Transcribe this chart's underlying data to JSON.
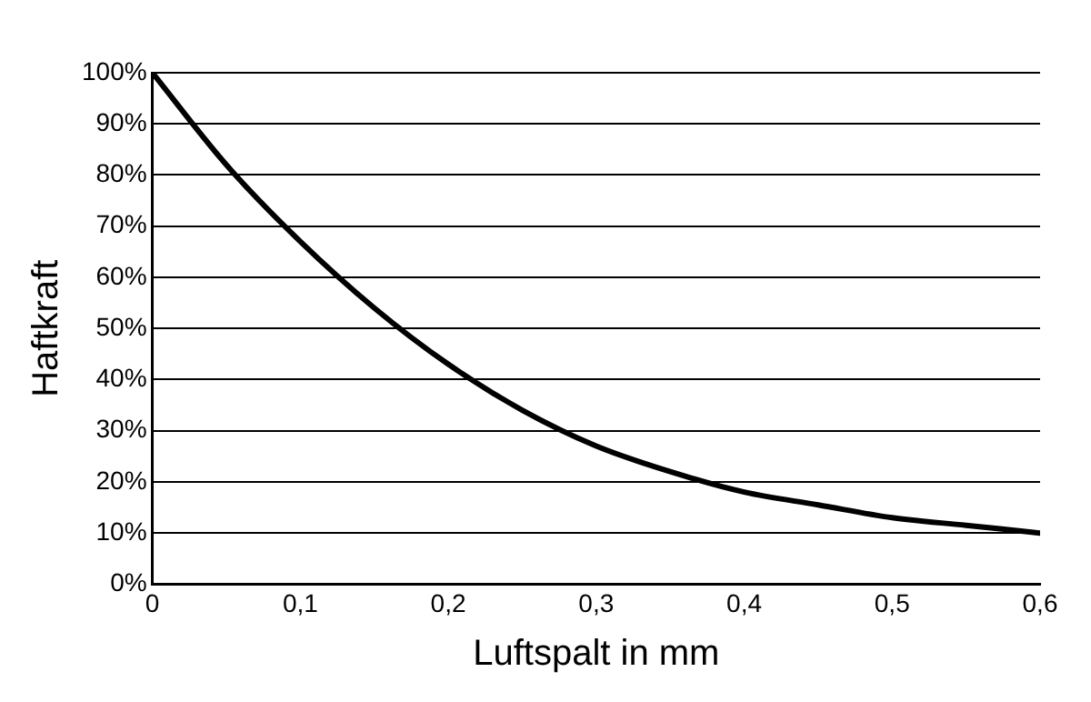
{
  "chart_data": {
    "type": "line",
    "xlabel": "Luftspalt in mm",
    "ylabel": "Haftkraft",
    "x": [
      0,
      0.05,
      0.1,
      0.15,
      0.2,
      0.25,
      0.3,
      0.35,
      0.4,
      0.45,
      0.5,
      0.55,
      0.6
    ],
    "series": [
      {
        "color": "#000000",
        "values": [
          100,
          82,
          67,
          54,
          43,
          34,
          27,
          22,
          18,
          15.5,
          13,
          11.5,
          10
        ]
      }
    ],
    "xlim": [
      0,
      0.6
    ],
    "xticks": [
      0,
      {
        "value": 0.1,
        "label": "0,1"
      },
      {
        "value": 0.2,
        "label": "0,2"
      },
      {
        "value": 0.3,
        "label": "0,3"
      },
      {
        "value": 0.4,
        "label": "0,4"
      },
      {
        "value": 0.5,
        "label": "0,5"
      },
      {
        "value": 0.6,
        "label": "0,6"
      }
    ],
    "ylim": [
      0,
      100
    ],
    "yticks": [
      {
        "value": 0,
        "label": "0%"
      },
      {
        "value": 10,
        "label": "10%"
      },
      {
        "value": 20,
        "label": "20%"
      },
      {
        "value": 30,
        "label": "30%"
      },
      {
        "value": 40,
        "label": "40%"
      },
      {
        "value": 50,
        "label": "50%"
      },
      {
        "value": 60,
        "label": "60%"
      },
      {
        "value": 70,
        "label": "70%"
      },
      {
        "value": 80,
        "label": "80%"
      },
      {
        "value": 90,
        "label": "90%"
      },
      {
        "value": 100,
        "label": "100%"
      }
    ],
    "grid": "y",
    "legend": false,
    "marker": "none",
    "line_style": "solid"
  }
}
